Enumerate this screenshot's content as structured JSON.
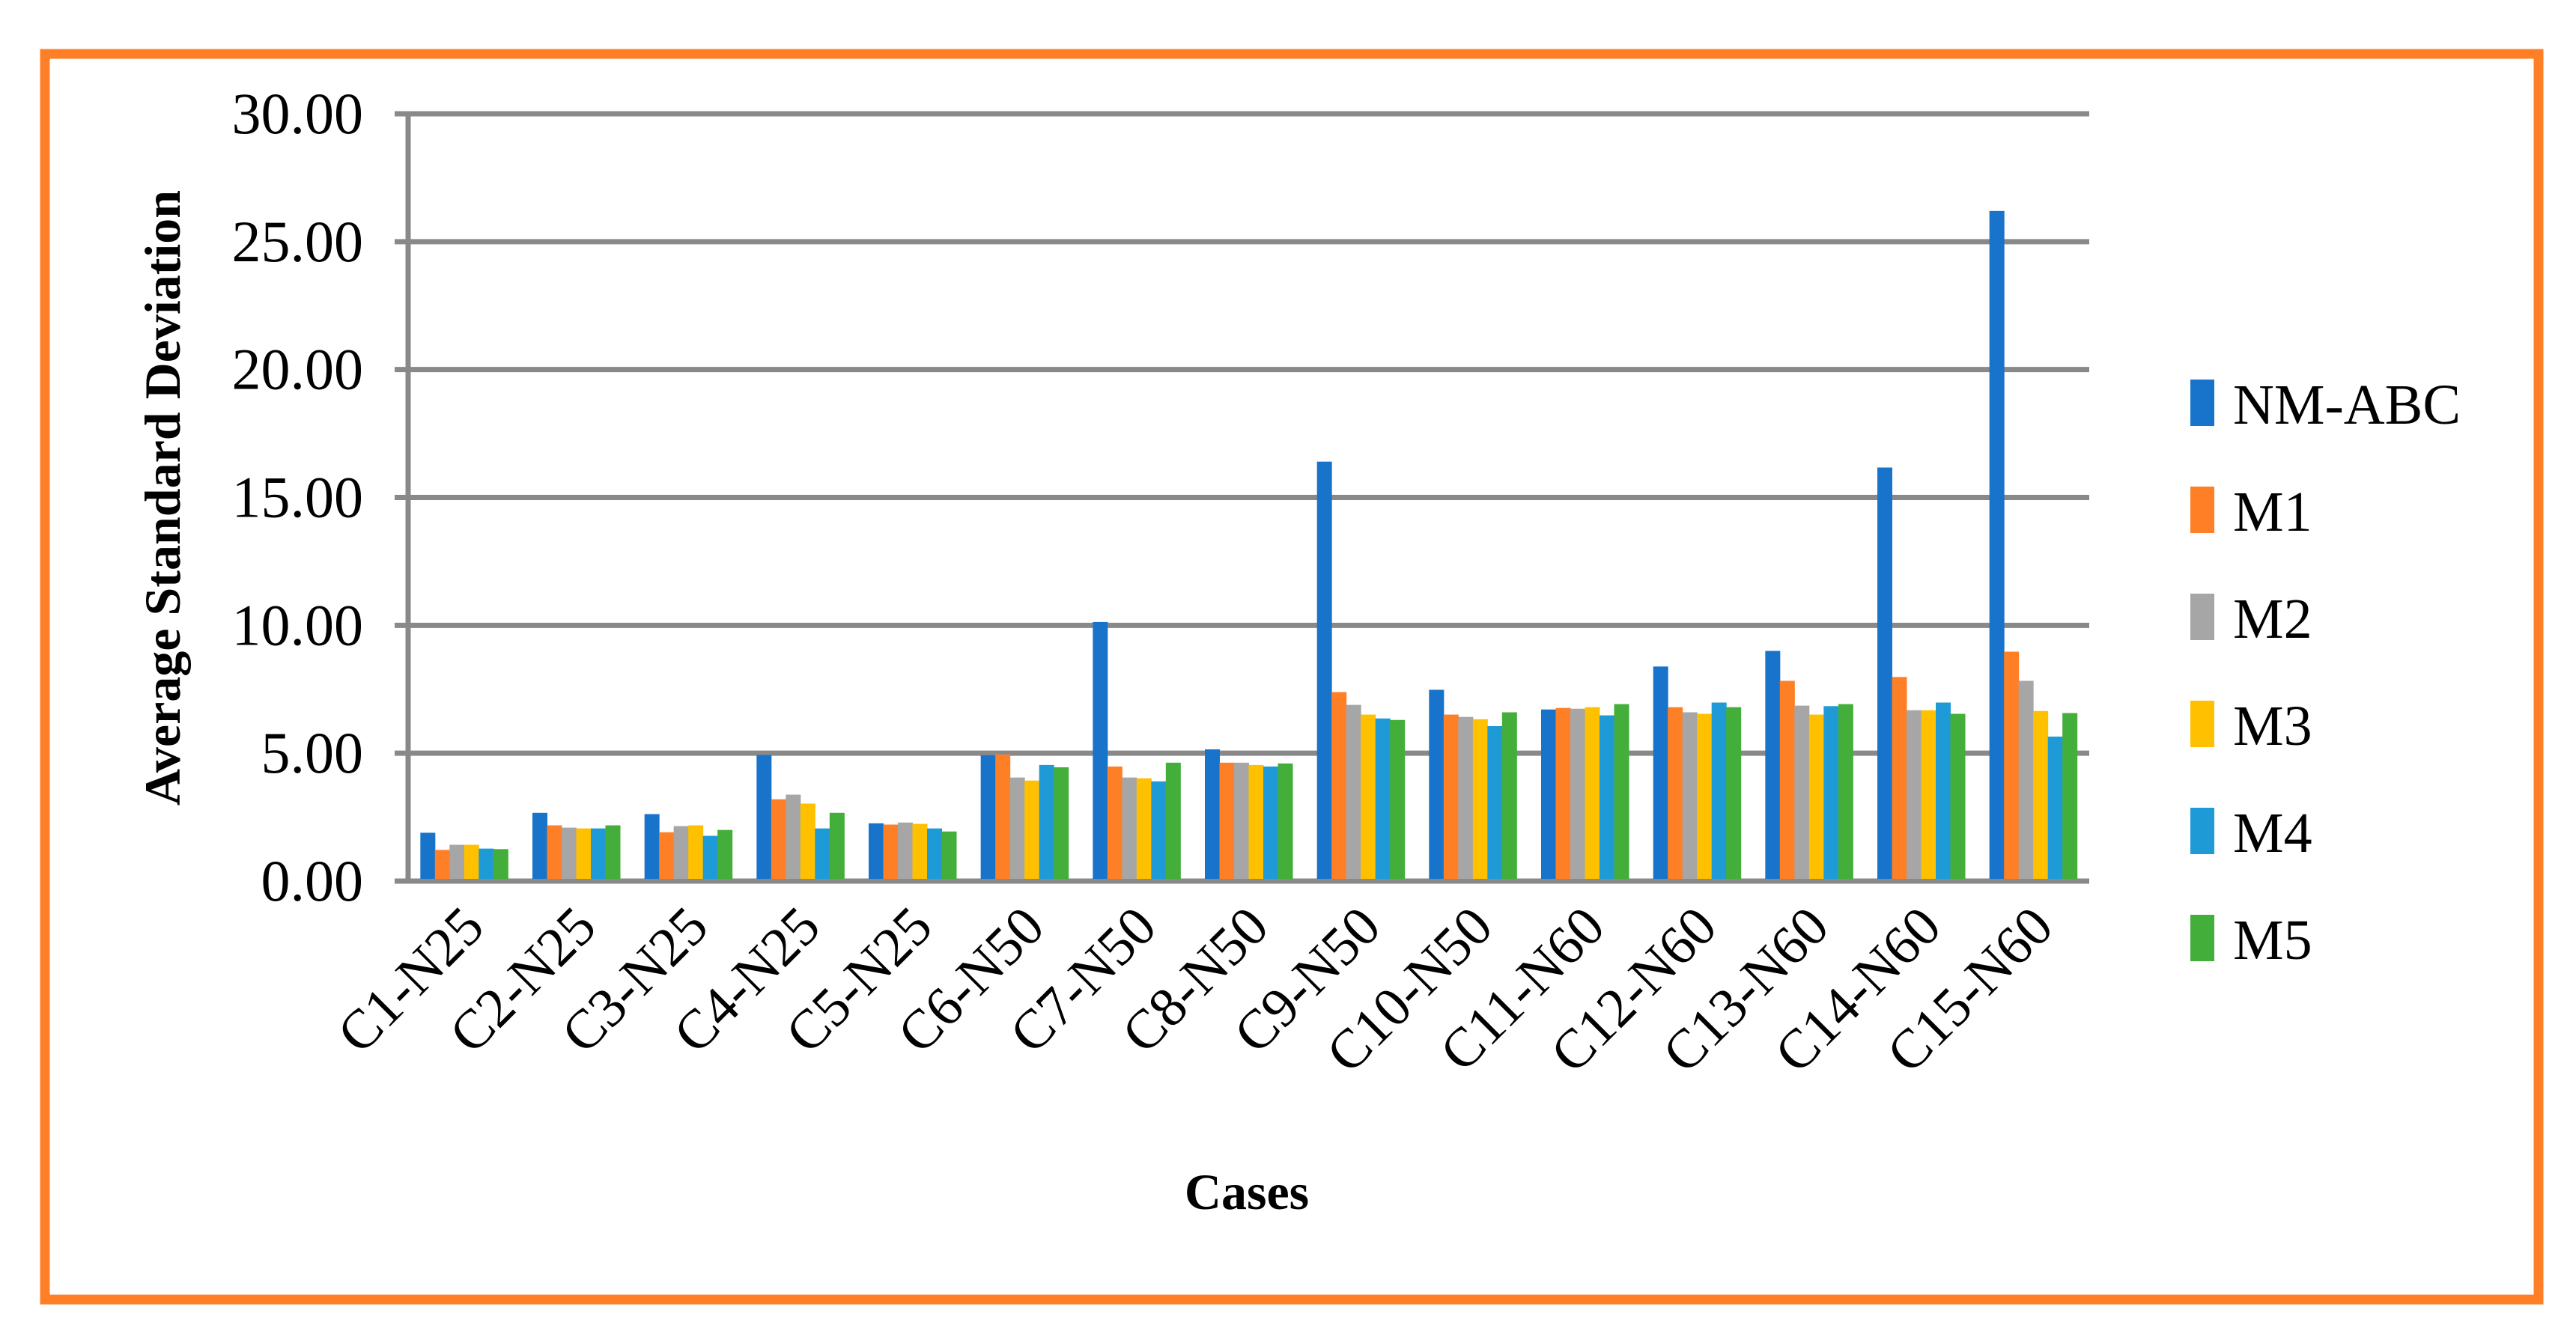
{
  "chart_data": {
    "type": "bar",
    "title": "",
    "xlabel": "Cases",
    "ylabel": "Average Standard Deviation",
    "ylim": [
      0,
      30
    ],
    "yticks": [
      "0.00",
      "5.00",
      "10.00",
      "15.00",
      "20.00",
      "25.00",
      "30.00"
    ],
    "grid": true,
    "legend_position": "right",
    "categories": [
      "C1-N25",
      "C2-N25",
      "C3-N25",
      "C4-N25",
      "C5-N25",
      "C6-N50",
      "C7-N50",
      "C8-N50",
      "C9-N50",
      "C10-N50",
      "C11-N60",
      "C12-N60",
      "C13-N60",
      "C14-N60",
      "C15-N60"
    ],
    "series": [
      {
        "name": "NM-ABC",
        "color": "#1874CB",
        "values": [
          1.89,
          2.67,
          2.62,
          4.93,
          2.26,
          4.92,
          10.13,
          5.15,
          16.4,
          7.48,
          6.71,
          8.39,
          9.0,
          16.17,
          26.2
        ]
      },
      {
        "name": "M1",
        "color": "#FF7F27",
        "values": [
          1.22,
          2.18,
          1.91,
          3.2,
          2.21,
          4.95,
          4.48,
          4.63,
          7.39,
          6.51,
          6.77,
          6.8,
          7.83,
          7.98,
          8.97
        ]
      },
      {
        "name": "M2",
        "color": "#A6A6A6",
        "values": [
          1.42,
          2.09,
          2.15,
          3.38,
          2.29,
          4.05,
          4.05,
          4.63,
          6.89,
          6.42,
          6.74,
          6.6,
          6.86,
          6.68,
          7.83
        ]
      },
      {
        "name": "M3",
        "color": "#FFC000",
        "values": [
          1.42,
          2.06,
          2.18,
          3.03,
          2.24,
          3.93,
          4.02,
          4.54,
          6.51,
          6.33,
          6.8,
          6.54,
          6.51,
          6.68,
          6.65
        ]
      },
      {
        "name": "M4",
        "color": "#1E9BD7",
        "values": [
          1.27,
          2.06,
          1.77,
          2.06,
          2.06,
          4.54,
          3.9,
          4.48,
          6.36,
          6.06,
          6.48,
          6.98,
          6.84,
          6.98,
          5.65
        ]
      },
      {
        "name": "M5",
        "color": "#44AE3B",
        "values": [
          1.25,
          2.18,
          2.0,
          2.67,
          1.94,
          4.45,
          4.63,
          4.6,
          6.3,
          6.6,
          6.92,
          6.8,
          6.92,
          6.54,
          6.57
        ]
      }
    ]
  },
  "style": {
    "frame_color": "#FF7F27",
    "grid_color": "#898989"
  }
}
